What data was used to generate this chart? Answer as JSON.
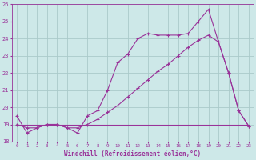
{
  "title": "",
  "xlabel": "Windchill (Refroidissement éolien,°C)",
  "ylabel": "",
  "xlim": [
    -0.5,
    23.5
  ],
  "ylim": [
    18,
    26
  ],
  "yticks": [
    18,
    19,
    20,
    21,
    22,
    23,
    24,
    25,
    26
  ],
  "xticks": [
    0,
    1,
    2,
    3,
    4,
    5,
    6,
    7,
    8,
    9,
    10,
    11,
    12,
    13,
    14,
    15,
    16,
    17,
    18,
    19,
    20,
    21,
    22,
    23
  ],
  "bg_color": "#cde8e8",
  "grid_color": "#b0d0d0",
  "line_color": "#993399",
  "line1_x": [
    0,
    1,
    2,
    3,
    4,
    5,
    6,
    7,
    8,
    9,
    10,
    11,
    12,
    13,
    14,
    15,
    16,
    17,
    18,
    19,
    20,
    21,
    22,
    23
  ],
  "line1_y": [
    19.5,
    18.5,
    18.8,
    19.0,
    19.0,
    18.8,
    18.5,
    19.5,
    19.8,
    21.0,
    22.6,
    23.1,
    24.0,
    24.3,
    24.2,
    24.2,
    24.2,
    24.3,
    25.0,
    25.7,
    23.8,
    22.0,
    19.8,
    18.9
  ],
  "line2_x": [
    0,
    1,
    2,
    3,
    4,
    5,
    6,
    7,
    8,
    9,
    10,
    11,
    12,
    13,
    14,
    15,
    16,
    17,
    18,
    19,
    20,
    21,
    22,
    23
  ],
  "line2_y": [
    19.0,
    18.8,
    18.8,
    19.0,
    19.0,
    18.8,
    18.8,
    19.0,
    19.3,
    19.7,
    20.1,
    20.6,
    21.1,
    21.6,
    22.1,
    22.5,
    23.0,
    23.5,
    23.9,
    24.2,
    23.8,
    22.0,
    19.8,
    18.9
  ],
  "line3_x": [
    0,
    23
  ],
  "line3_y": [
    19.0,
    19.0
  ]
}
